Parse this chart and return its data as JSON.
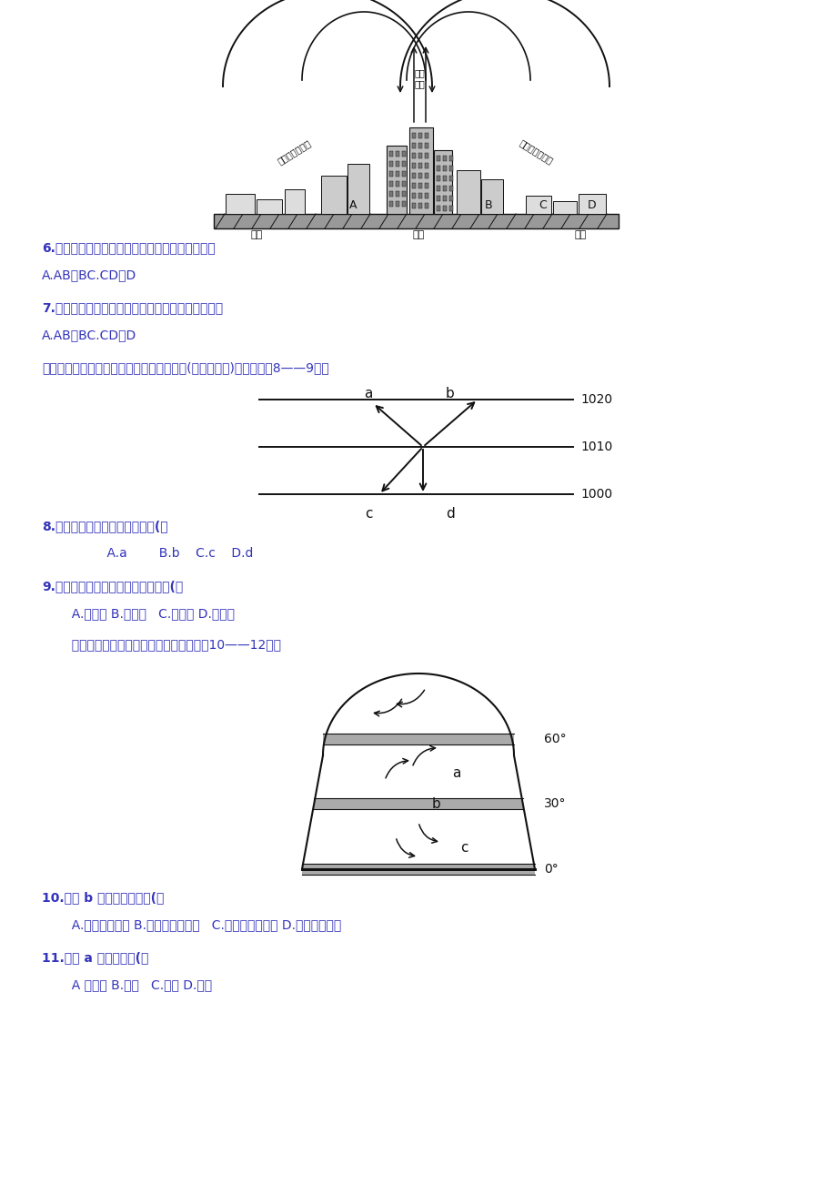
{
  "bg_color": "#ffffff",
  "blue": "#3333bb",
  "black": "#111111",
  "page_width": 9.2,
  "page_height": 13.02,
  "dpi": 100,
  "q6": "6.根据热力环流状况，该市的造林重点区宜规划在",
  "q6a": "A.AB．BC.CD．D",
  "q7": "7.根据热力环流状况，该市的大气污染企业宜规划在",
  "q7a": "A.AB．BC.CD．D",
  "intro8": "右图为北半球某气压场受力平衡时的风向图(单位：百帕)，据图完成8——9题。",
  "q8": "8.其中代表水平气压梯度力的是(）",
  "q8a": "    A.a        B.b    C.c    D.d",
  "q9": "9.根据风向可判断该地所在的半球是(）",
  "q9a": "  A.北半球 B.南半球   C.东半球 D.西半球",
  "intro10": "  读北半球气压带、风带分布规律图，完成10——12题。",
  "q10": "10.图中 b 点所在气压带是(）",
  "q10a": "  A.极地高气压带 B.副极地高气压带   C.副热带高气压带 D.赤道低气压带",
  "q11": "11.图中 a 风带的性质(）",
  "q11a": "  A 一热湿 B.热干   C.温湿 D.冷干"
}
